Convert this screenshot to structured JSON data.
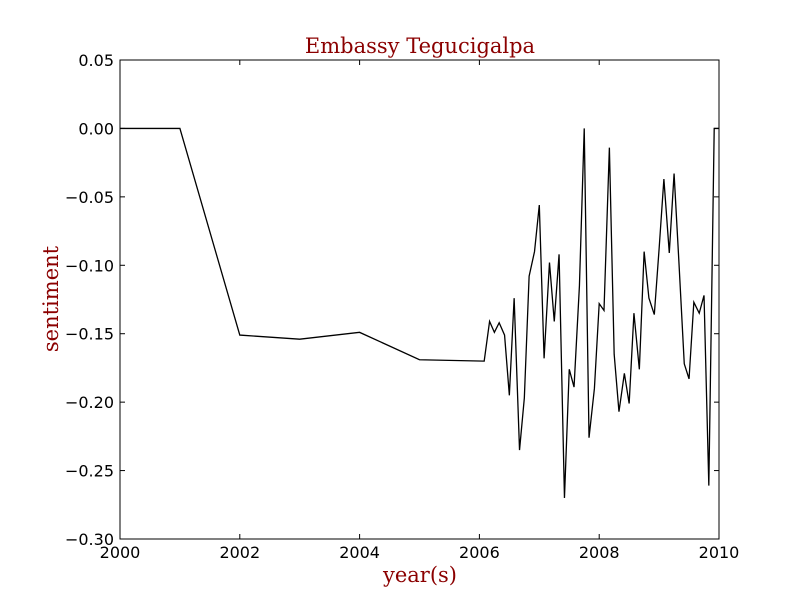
{
  "chart_data": {
    "type": "line",
    "title": "Embassy Tegucigalpa",
    "xlabel": "year(s)",
    "ylabel": "sentiment",
    "xlim": [
      2000,
      2010
    ],
    "ylim": [
      -0.3,
      0.05
    ],
    "x_ticks": [
      "2000",
      "2002",
      "2004",
      "2006",
      "2008",
      "2010"
    ],
    "y_ticks": [
      "0.05",
      "0.00",
      "−0.05",
      "−0.10",
      "−0.15",
      "−0.20",
      "−0.25",
      "−0.30"
    ],
    "grid": false,
    "label_color": "#8b0000",
    "line_color": "#000000",
    "series": [
      {
        "x": [
          2000.0,
          2001.0,
          2002.0,
          2003.0,
          2004.0,
          2005.0,
          2006.08,
          2006.17,
          2006.25,
          2006.33,
          2006.42,
          2006.5,
          2006.58,
          2006.67,
          2006.75,
          2006.83,
          2006.92,
          2007.0,
          2007.08,
          2007.17,
          2007.25,
          2007.33,
          2007.42,
          2007.5,
          2007.58,
          2007.67,
          2007.75,
          2007.83,
          2007.92,
          2008.0,
          2008.08,
          2008.17,
          2008.25,
          2008.33,
          2008.42,
          2008.5,
          2008.58,
          2008.67,
          2008.75,
          2008.83,
          2008.92,
          2009.0,
          2009.08,
          2009.17,
          2009.25,
          2009.33,
          2009.42,
          2009.5,
          2009.58,
          2009.67,
          2009.75,
          2009.83,
          2009.92,
          2010.0
        ],
        "y": [
          0.0,
          0.0,
          -0.151,
          -0.154,
          -0.149,
          -0.169,
          -0.17,
          -0.141,
          -0.149,
          -0.142,
          -0.151,
          -0.195,
          -0.124,
          -0.235,
          -0.197,
          -0.108,
          -0.09,
          -0.056,
          -0.168,
          -0.098,
          -0.141,
          -0.092,
          -0.27,
          -0.176,
          -0.189,
          -0.115,
          0.0,
          -0.226,
          -0.19,
          -0.128,
          -0.133,
          -0.014,
          -0.165,
          -0.207,
          -0.179,
          -0.201,
          -0.135,
          -0.176,
          -0.09,
          -0.124,
          -0.136,
          -0.088,
          -0.037,
          -0.091,
          -0.033,
          -0.097,
          -0.172,
          -0.183,
          -0.127,
          -0.135,
          -0.122,
          -0.261,
          0.0,
          0.0
        ]
      }
    ]
  }
}
